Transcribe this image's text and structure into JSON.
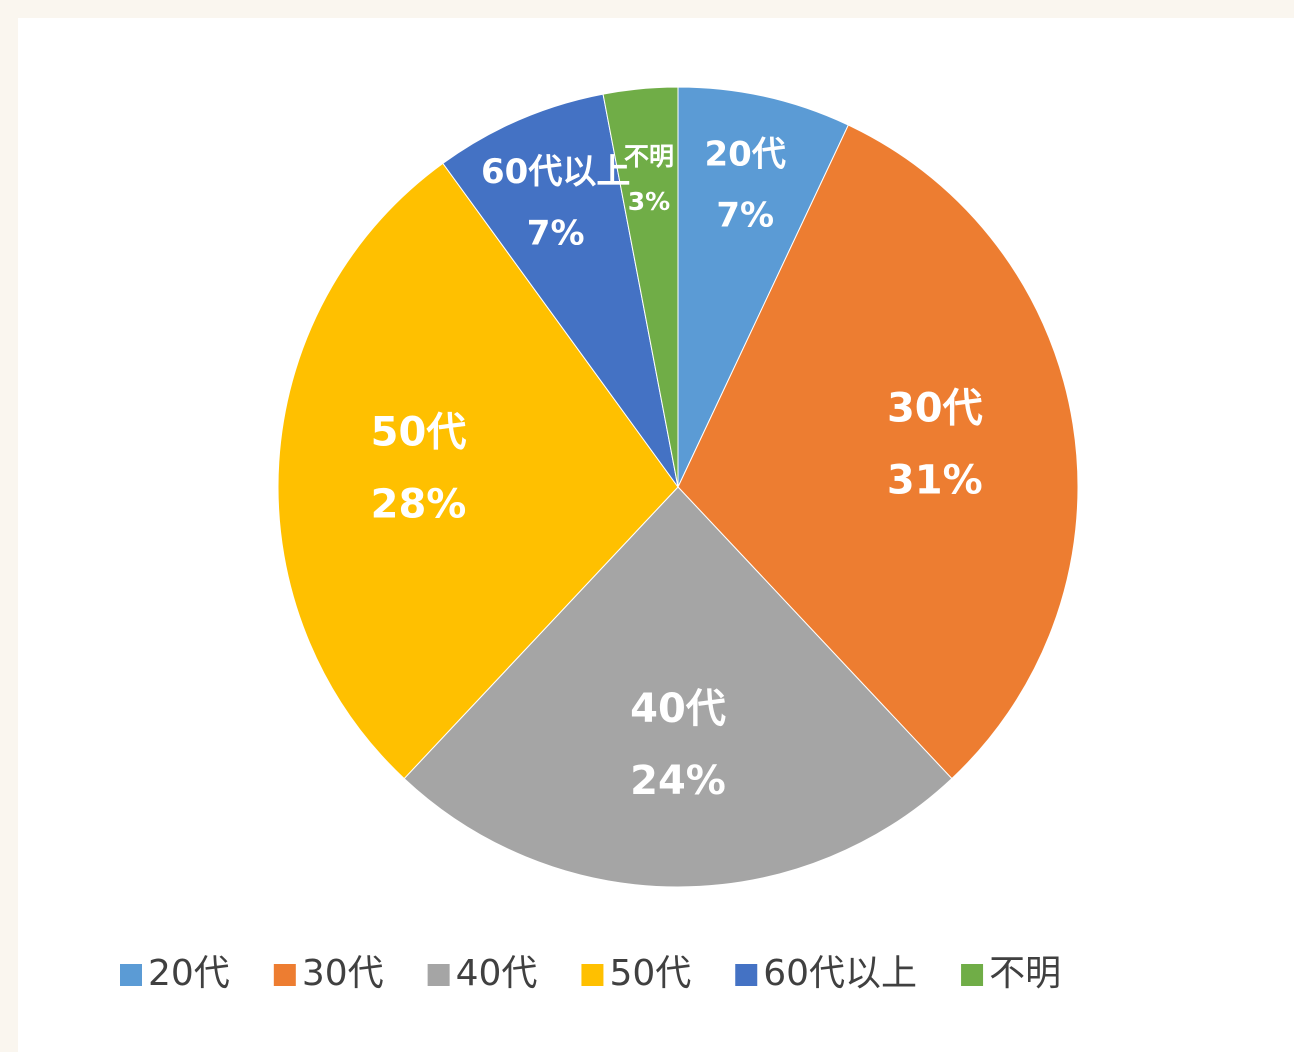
{
  "chart_data": {
    "type": "pie",
    "categories": [
      "20代",
      "30代",
      "40代",
      "50代",
      "60代以上",
      "不明"
    ],
    "values": [
      7,
      31,
      24,
      28,
      7,
      3
    ],
    "value_labels": [
      "7%",
      "31%",
      "24%",
      "28%",
      "7%",
      "3%"
    ],
    "colors": [
      "#5b9bd5",
      "#ed7d31",
      "#a5a5a5",
      "#ffc000",
      "#4472c4",
      "#70ad47"
    ],
    "legend": "bottom"
  }
}
